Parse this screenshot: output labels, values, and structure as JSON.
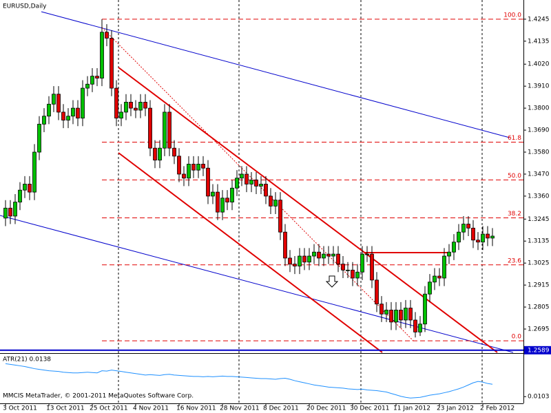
{
  "chart_data": {
    "type": "candlestick",
    "title": "EURUSD,Daily",
    "footer": "MMCIS MetaTrader, © 2001-2011 MetaQuotes Software Corp.",
    "up_color": "#00c000",
    "down_color": "#e00000",
    "categories": [
      "3 Oct 2011",
      null,
      null,
      null,
      null,
      null,
      null,
      null,
      null,
      "13 Oct 2011",
      null,
      null,
      null,
      null,
      null,
      null,
      null,
      null,
      "25 Oct 2011",
      null,
      null,
      null,
      null,
      null,
      null,
      null,
      null,
      "4 Nov 2011",
      null,
      null,
      null,
      null,
      null,
      null,
      null,
      null,
      "16 Nov 2011",
      null,
      null,
      null,
      null,
      null,
      null,
      null,
      null,
      "28 Nov 2011",
      null,
      null,
      null,
      null,
      null,
      null,
      null,
      null,
      "8 Dec 2011",
      null,
      null,
      null,
      null,
      null,
      null,
      null,
      null,
      "20 Dec 2011",
      null,
      null,
      null,
      null,
      null,
      null,
      null,
      null,
      "30 Dec 2011",
      null,
      null,
      null,
      null,
      null,
      null,
      null,
      null,
      "11 Jan 2012",
      null,
      null,
      null,
      null,
      null,
      null,
      null,
      null,
      "23 Jan 2012",
      null,
      null,
      null,
      null,
      null,
      null,
      null,
      null,
      "2 Feb 2012",
      null,
      null
    ],
    "open": [
      1.325,
      1.33,
      1.326,
      1.333,
      1.339,
      1.342,
      1.338,
      1.358,
      1.372,
      1.376,
      1.382,
      1.387,
      1.378,
      1.374,
      1.376,
      1.38,
      1.375,
      1.39,
      1.392,
      1.396,
      1.395,
      1.418,
      1.415,
      1.39,
      1.375,
      1.378,
      1.383,
      1.38,
      1.379,
      1.383,
      1.38,
      1.36,
      1.354,
      1.36,
      1.378,
      1.36,
      1.356,
      1.347,
      1.345,
      1.352,
      1.349,
      1.352,
      1.35,
      1.336,
      1.338,
      1.328,
      1.335,
      1.333,
      1.34,
      1.345,
      1.347,
      1.342,
      1.344,
      1.341,
      1.342,
      1.336,
      1.331,
      1.334,
      1.318,
      1.305,
      1.302,
      1.301,
      1.306,
      1.303,
      1.306,
      1.308,
      1.305,
      1.307,
      1.306,
      1.307,
      1.302,
      1.299,
      1.299,
      1.295,
      1.298,
      1.307,
      1.307,
      1.294,
      1.282,
      1.277,
      1.279,
      1.273,
      1.279,
      1.274,
      1.28,
      1.274,
      1.268,
      1.272,
      1.287,
      1.293,
      1.296,
      1.295,
      1.306,
      1.308,
      1.313,
      1.318,
      1.322,
      1.32,
      1.314,
      1.313,
      1.317,
      1.315
    ],
    "high": [
      1.334,
      1.334,
      1.337,
      1.343,
      1.346,
      1.346,
      1.362,
      1.376,
      1.38,
      1.386,
      1.391,
      1.391,
      1.382,
      1.38,
      1.384,
      1.384,
      1.394,
      1.396,
      1.4,
      1.4,
      1.4245,
      1.422,
      1.419,
      1.394,
      1.382,
      1.387,
      1.387,
      1.384,
      1.387,
      1.387,
      1.384,
      1.364,
      1.364,
      1.382,
      1.382,
      1.364,
      1.36,
      1.351,
      1.356,
      1.356,
      1.356,
      1.356,
      1.354,
      1.342,
      1.342,
      1.339,
      1.339,
      1.344,
      1.349,
      1.351,
      1.351,
      1.348,
      1.348,
      1.346,
      1.346,
      1.34,
      1.338,
      1.338,
      1.322,
      1.309,
      1.306,
      1.31,
      1.31,
      1.31,
      1.312,
      1.312,
      1.311,
      1.311,
      1.311,
      1.311,
      1.306,
      1.303,
      1.303,
      1.302,
      1.311,
      1.311,
      1.311,
      1.298,
      1.286,
      1.283,
      1.283,
      1.283,
      1.283,
      1.284,
      1.284,
      1.278,
      1.276,
      1.291,
      1.297,
      1.3,
      1.3,
      1.31,
      1.312,
      1.317,
      1.322,
      1.326,
      1.326,
      1.324,
      1.318,
      1.321,
      1.321,
      1.32
    ],
    "low": [
      1.321,
      1.322,
      1.322,
      1.329,
      1.335,
      1.334,
      1.334,
      1.354,
      1.368,
      1.372,
      1.378,
      1.374,
      1.37,
      1.37,
      1.372,
      1.371,
      1.371,
      1.386,
      1.388,
      1.391,
      1.391,
      1.411,
      1.386,
      1.371,
      1.371,
      1.374,
      1.376,
      1.375,
      1.375,
      1.376,
      1.356,
      1.35,
      1.35,
      1.356,
      1.356,
      1.352,
      1.343,
      1.341,
      1.341,
      1.345,
      1.345,
      1.346,
      1.332,
      1.332,
      1.324,
      1.324,
      1.329,
      1.329,
      1.336,
      1.341,
      1.338,
      1.338,
      1.337,
      1.337,
      1.332,
      1.327,
      1.327,
      1.314,
      1.301,
      1.298,
      1.297,
      1.297,
      1.299,
      1.299,
      1.302,
      1.301,
      1.301,
      1.302,
      1.302,
      1.298,
      1.295,
      1.295,
      1.291,
      1.291,
      1.294,
      1.303,
      1.29,
      1.278,
      1.273,
      1.273,
      1.269,
      1.269,
      1.27,
      1.27,
      1.27,
      1.2653,
      1.266,
      1.268,
      1.283,
      1.289,
      1.291,
      1.291,
      1.302,
      1.304,
      1.309,
      1.314,
      1.316,
      1.31,
      1.309,
      1.309,
      1.311,
      1.311
    ],
    "close": [
      1.33,
      1.326,
      1.333,
      1.339,
      1.342,
      1.338,
      1.358,
      1.372,
      1.376,
      1.382,
      1.387,
      1.378,
      1.374,
      1.376,
      1.38,
      1.375,
      1.39,
      1.392,
      1.396,
      1.395,
      1.418,
      1.415,
      1.39,
      1.375,
      1.378,
      1.383,
      1.38,
      1.379,
      1.383,
      1.38,
      1.36,
      1.354,
      1.36,
      1.378,
      1.36,
      1.356,
      1.347,
      1.345,
      1.352,
      1.349,
      1.352,
      1.35,
      1.336,
      1.338,
      1.328,
      1.335,
      1.333,
      1.34,
      1.345,
      1.347,
      1.342,
      1.344,
      1.341,
      1.342,
      1.336,
      1.331,
      1.334,
      1.318,
      1.305,
      1.302,
      1.301,
      1.306,
      1.303,
      1.306,
      1.308,
      1.305,
      1.307,
      1.306,
      1.307,
      1.302,
      1.299,
      1.299,
      1.295,
      1.298,
      1.307,
      1.307,
      1.294,
      1.282,
      1.277,
      1.279,
      1.273,
      1.279,
      1.274,
      1.28,
      1.274,
      1.268,
      1.272,
      1.287,
      1.293,
      1.296,
      1.295,
      1.306,
      1.308,
      1.313,
      1.318,
      1.322,
      1.32,
      1.314,
      1.313,
      1.317,
      1.315,
      1.316
    ],
    "ylim": [
      1.2578,
      1.4341
    ],
    "yticks": [
      {
        "value": 1.4245,
        "label": "1.4245"
      },
      {
        "value": 1.4135,
        "label": "1.4135"
      },
      {
        "value": 1.402,
        "label": "1.4020"
      },
      {
        "value": 1.391,
        "label": "1.3910"
      },
      {
        "value": 1.38,
        "label": "1.3800"
      },
      {
        "value": 1.369,
        "label": "1.3690"
      },
      {
        "value": 1.358,
        "label": "1.3580"
      },
      {
        "value": 1.347,
        "label": "1.3470"
      },
      {
        "value": 1.336,
        "label": "1.3360"
      },
      {
        "value": 1.3245,
        "label": "1.3245"
      },
      {
        "value": 1.3135,
        "label": "1.3135"
      },
      {
        "value": 1.3025,
        "label": "1.3025"
      },
      {
        "value": 1.2915,
        "label": "1.2915"
      },
      {
        "value": 1.2805,
        "label": "1.2805"
      },
      {
        "value": 1.2695,
        "label": "1.2695"
      }
    ],
    "current_price": 1.2589,
    "current_price_color": "#0000cc",
    "fib_color": "#e00000",
    "fib_levels": [
      {
        "label": "100.0",
        "value": 1.4245
      },
      {
        "label": "61.8",
        "value": 1.363
      },
      {
        "label": "50.0",
        "value": 1.3441
      },
      {
        "label": "38.2",
        "value": 1.3251
      },
      {
        "label": "23.6",
        "value": 1.3016
      },
      {
        "label": "0.0",
        "value": 1.2636
      }
    ],
    "indicator": {
      "title": "ATR(21) 0.0138",
      "color": "#1e90ff",
      "ylim": [
        0.0084,
        0.022
      ],
      "yticks": [
        0.0103
      ],
      "values": [
        0.0196,
        0.0194,
        0.0192,
        0.019,
        0.0188,
        0.0185,
        0.0182,
        0.018,
        0.0178,
        0.0176,
        0.0175,
        0.0174,
        0.0172,
        0.0171,
        0.017,
        0.017,
        0.0171,
        0.0172,
        0.0171,
        0.017,
        0.0176,
        0.0175,
        0.0178,
        0.0176,
        0.0174,
        0.0172,
        0.017,
        0.0168,
        0.0166,
        0.0164,
        0.0165,
        0.0164,
        0.0163,
        0.0165,
        0.0166,
        0.0164,
        0.0163,
        0.0162,
        0.0161,
        0.016,
        0.016,
        0.0159,
        0.016,
        0.0159,
        0.016,
        0.0161,
        0.016,
        0.016,
        0.0159,
        0.0158,
        0.0157,
        0.0156,
        0.0155,
        0.0154,
        0.0154,
        0.0153,
        0.0152,
        0.0154,
        0.0155,
        0.0152,
        0.0148,
        0.0145,
        0.0142,
        0.0139,
        0.0136,
        0.0134,
        0.0132,
        0.013,
        0.0129,
        0.0128,
        0.0127,
        0.0125,
        0.0124,
        0.0123,
        0.0124,
        0.0122,
        0.0121,
        0.012,
        0.0118,
        0.0116,
        0.0112,
        0.0108,
        0.0104,
        0.0101,
        0.0099,
        0.01,
        0.0101,
        0.0104,
        0.0107,
        0.0109,
        0.0111,
        0.0114,
        0.0117,
        0.0121,
        0.0125,
        0.013,
        0.0136,
        0.0142,
        0.0146,
        0.0144,
        0.014,
        0.0138
      ]
    }
  }
}
